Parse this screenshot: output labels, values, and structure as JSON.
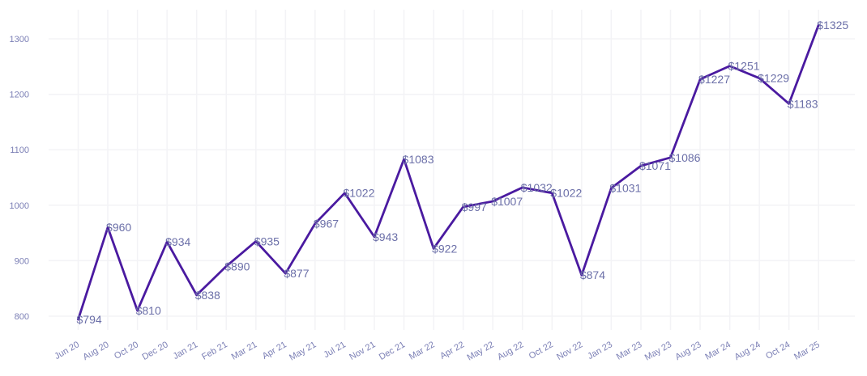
{
  "chart_data": {
    "type": "line",
    "title": "",
    "xlabel": "",
    "ylabel": "",
    "categories": [
      "Jun 20",
      "Aug 20",
      "Oct 20",
      "Dec 20",
      "Jan 21",
      "Feb 21",
      "Mar 21",
      "Apr 21",
      "May 21",
      "Jul 21",
      "Nov 21",
      "Dec 21",
      "Mar 22",
      "Apr 22",
      "May 22",
      "Aug 22",
      "Oct 22",
      "Nov 22",
      "Jan 23",
      "Mar 23",
      "May 23",
      "Aug 23",
      "Mar 24",
      "Aug 24",
      "Oct 24",
      "Mar 25"
    ],
    "values": [
      794,
      960,
      810,
      934,
      838,
      890,
      935,
      877,
      967,
      1022,
      943,
      1083,
      922,
      997,
      1007,
      1032,
      1022,
      874,
      1031,
      1071,
      1086,
      1227,
      1251,
      1229,
      1183,
      1325
    ],
    "data_labels": [
      "$794",
      "$960",
      "$810",
      "$934",
      "$838",
      "$890",
      "$935",
      "$877",
      "$967",
      "$1022",
      "$943",
      "$1083",
      "$922",
      "$997",
      "$1007",
      "$1032",
      "$1022",
      "$874",
      "$1031",
      "$1071",
      "$1086",
      "$1227",
      "$1251",
      "$1229",
      "$1183",
      "$1325"
    ],
    "yticks": [
      800,
      900,
      1000,
      1100,
      1200,
      1300
    ],
    "ylim": [
      760,
      1355
    ],
    "grid": true,
    "legend": "none",
    "colors": {
      "line": "#4a1aa0",
      "labels": "#6b6fa8",
      "ticks": "#7b7fb5",
      "grid": "#f3f3f6"
    }
  }
}
